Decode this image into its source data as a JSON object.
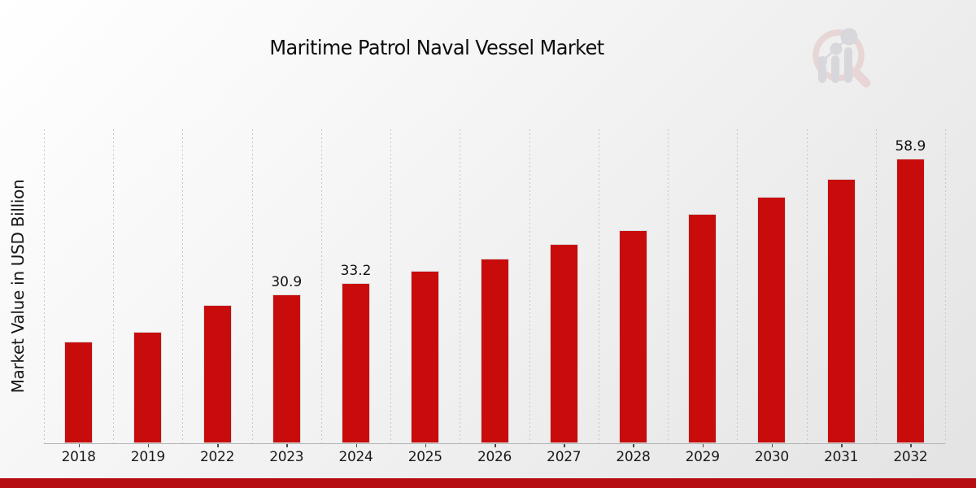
{
  "chart_data": {
    "type": "bar",
    "title": "Maritime Patrol Naval Vessel Market",
    "ylabel": "Market Value in USD Billion",
    "xlabel": "",
    "categories": [
      "2018",
      "2019",
      "2022",
      "2023",
      "2024",
      "2025",
      "2026",
      "2027",
      "2028",
      "2029",
      "2030",
      "2031",
      "2032"
    ],
    "values": [
      21.0,
      23.0,
      28.7,
      30.9,
      33.2,
      35.7,
      38.3,
      41.2,
      44.2,
      47.5,
      51.0,
      54.8,
      58.9
    ],
    "data_labels": {
      "2023": "30.9",
      "2024": "33.2",
      "2032": "58.9"
    },
    "ylim": [
      0,
      65
    ],
    "grid": "vertical-dashed",
    "legend_position": "none",
    "bar_color": "#c80c0c",
    "gridline_color": "#c6c6c6",
    "axis_line_color": "#b3b3b3",
    "tick_color": "#4a4a4a",
    "text_color": "#111111"
  },
  "branding": {
    "logo_name": "magnifier-bar-chart-logo",
    "logo_ring_color": "#e8d3d3",
    "logo_bars_color": "#d5d5da"
  },
  "footer": {
    "accent_bar_color": "#b50d11"
  }
}
